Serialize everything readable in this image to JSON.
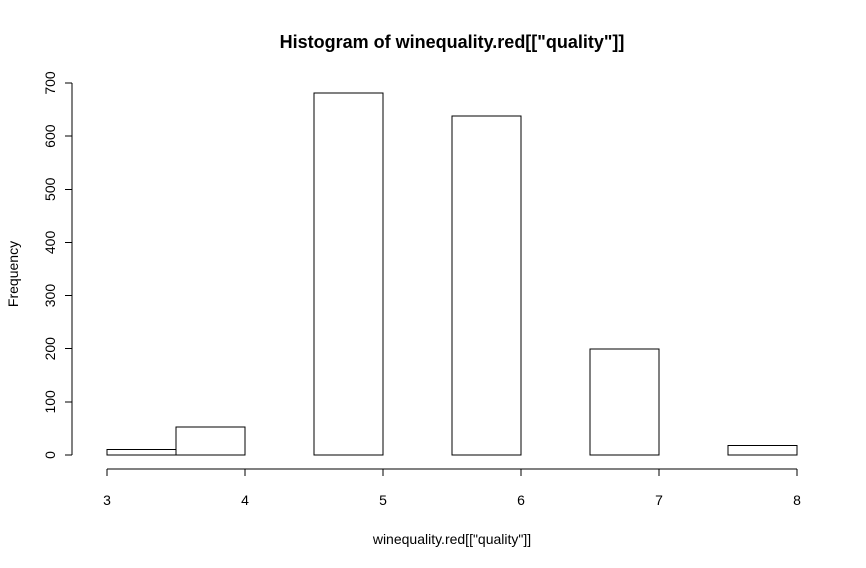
{
  "chart_data": {
    "type": "bar",
    "title": "Histogram of winequality.red[[\"quality\"]]",
    "xlabel": "winequality.red[[\"quality\"]]",
    "ylabel": "Frequency",
    "bins": [
      {
        "x0": 3.0,
        "x1": 3.5,
        "count": 10
      },
      {
        "x0": 3.5,
        "x1": 4.0,
        "count": 53
      },
      {
        "x0": 4.0,
        "x1": 4.5,
        "count": 0
      },
      {
        "x0": 4.5,
        "x1": 5.0,
        "count": 681
      },
      {
        "x0": 5.0,
        "x1": 5.5,
        "count": 0
      },
      {
        "x0": 5.5,
        "x1": 6.0,
        "count": 638
      },
      {
        "x0": 6.0,
        "x1": 6.5,
        "count": 0
      },
      {
        "x0": 6.5,
        "x1": 7.0,
        "count": 199
      },
      {
        "x0": 7.0,
        "x1": 7.5,
        "count": 0
      },
      {
        "x0": 7.5,
        "x1": 8.0,
        "count": 18
      }
    ],
    "xlim": [
      3,
      8
    ],
    "ylim": [
      0,
      700
    ],
    "xticks": [
      3,
      4,
      5,
      6,
      7,
      8
    ],
    "yticks": [
      0,
      100,
      200,
      300,
      400,
      500,
      600,
      700
    ],
    "grid": false,
    "bar_fill": "#ffffff",
    "bar_stroke": "#000000"
  }
}
